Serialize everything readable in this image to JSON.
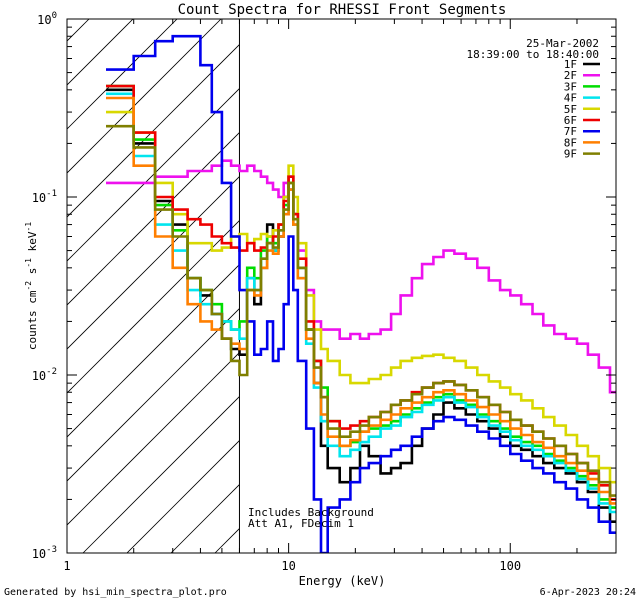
{
  "chart_data": {
    "type": "line",
    "title": "Count Spectra for RHESSI Front Segments",
    "xlabel": "Energy (keV)",
    "ylabel_parts": [
      "counts cm",
      "-2",
      " s",
      "-1",
      " keV",
      "-1"
    ],
    "xscale": "log",
    "yscale": "log",
    "xlim": [
      1,
      300
    ],
    "ylim": [
      0.001,
      1
    ],
    "x_tick_labels": [
      {
        "value": 1,
        "label": "1"
      },
      {
        "value": 10,
        "label": "10"
      },
      {
        "value": 100,
        "label": "100"
      }
    ],
    "y_tick_labels": [
      {
        "value": 1,
        "mantissa": "10",
        "exp": "0"
      },
      {
        "value": 0.1,
        "mantissa": "10",
        "exp": "-1"
      },
      {
        "value": 0.01,
        "mantissa": "10",
        "exp": "-2"
      },
      {
        "value": 0.001,
        "mantissa": "10",
        "exp": "-3"
      }
    ],
    "shaded_region": {
      "x_range": [
        1,
        6
      ],
      "style": "diagonal-hatch"
    },
    "annotation_date": "25-Mar-2002",
    "annotation_time": "18:39:00 to 18:40:00",
    "annotation_note_1": "Includes Background",
    "annotation_note_2": "Att A1, FDecim 1",
    "energy_edges_x": [
      1.5,
      2.0,
      2.5,
      3.0,
      3.5,
      4.0,
      4.5,
      5.0,
      5.5,
      6.0,
      6.5,
      7.0,
      7.5,
      8.0,
      8.5,
      9.0,
      9.5,
      10.0,
      10.5,
      11.0,
      12.0,
      13.0,
      14.0,
      15.0,
      17.0,
      19.0,
      21.0,
      23.0,
      26.0,
      29.0,
      32.0,
      36.0,
      40.0,
      45.0,
      50.0,
      56.0,
      63.0,
      71.0,
      80.0,
      90.0,
      100.0,
      112.0,
      126.0,
      141.0,
      158.0,
      178.0,
      200.0,
      224.0,
      251.0,
      282.0
    ],
    "series": [
      {
        "name": "1F",
        "color": "#000000",
        "values": [
          0.4,
          0.2,
          0.095,
          0.07,
          0.035,
          0.028,
          0.022,
          0.016,
          0.014,
          0.013,
          0.035,
          0.025,
          0.04,
          0.07,
          0.05,
          0.06,
          0.1,
          0.13,
          0.08,
          0.04,
          0.018,
          0.009,
          0.004,
          0.003,
          0.0025,
          0.003,
          0.004,
          0.0035,
          0.0028,
          0.003,
          0.0032,
          0.004,
          0.005,
          0.006,
          0.007,
          0.0065,
          0.006,
          0.0055,
          0.005,
          0.0045,
          0.004,
          0.0038,
          0.0035,
          0.0032,
          0.003,
          0.0028,
          0.0025,
          0.0022,
          0.0018,
          0.0015
        ]
      },
      {
        "name": "2F",
        "color": "#ee11ee",
        "values": [
          0.12,
          0.12,
          0.13,
          0.13,
          0.14,
          0.14,
          0.15,
          0.16,
          0.15,
          0.14,
          0.15,
          0.14,
          0.13,
          0.12,
          0.11,
          0.1,
          0.12,
          0.11,
          0.08,
          0.05,
          0.03,
          0.02,
          0.018,
          0.018,
          0.016,
          0.017,
          0.016,
          0.017,
          0.018,
          0.022,
          0.028,
          0.035,
          0.042,
          0.046,
          0.05,
          0.048,
          0.045,
          0.04,
          0.034,
          0.03,
          0.028,
          0.025,
          0.022,
          0.019,
          0.017,
          0.016,
          0.015,
          0.013,
          0.011,
          0.008
        ]
      },
      {
        "name": "3F",
        "color": "#00dd00",
        "values": [
          0.42,
          0.21,
          0.09,
          0.065,
          0.035,
          0.03,
          0.025,
          0.02,
          0.018,
          0.02,
          0.04,
          0.035,
          0.05,
          0.06,
          0.055,
          0.07,
          0.09,
          0.12,
          0.08,
          0.04,
          0.018,
          0.012,
          0.0085,
          0.0055,
          0.004,
          0.0042,
          0.0048,
          0.005,
          0.0052,
          0.0055,
          0.006,
          0.0065,
          0.007,
          0.0075,
          0.0078,
          0.0072,
          0.0068,
          0.006,
          0.0055,
          0.005,
          0.0045,
          0.0042,
          0.004,
          0.0036,
          0.0033,
          0.003,
          0.0027,
          0.0024,
          0.002,
          0.0018
        ]
      },
      {
        "name": "4F",
        "color": "#00e5ee",
        "values": [
          0.38,
          0.17,
          0.07,
          0.05,
          0.03,
          0.025,
          0.022,
          0.02,
          0.018,
          0.016,
          0.035,
          0.03,
          0.045,
          0.055,
          0.05,
          0.065,
          0.08,
          0.11,
          0.07,
          0.035,
          0.015,
          0.0085,
          0.0055,
          0.004,
          0.0035,
          0.0038,
          0.0042,
          0.0045,
          0.005,
          0.0052,
          0.0058,
          0.0062,
          0.0068,
          0.0072,
          0.0075,
          0.007,
          0.0066,
          0.0058,
          0.0052,
          0.0048,
          0.0043,
          0.004,
          0.0038,
          0.0035,
          0.0032,
          0.0029,
          0.0026,
          0.0023,
          0.0019,
          0.0017
        ]
      },
      {
        "name": "5F",
        "color": "#d8d800",
        "values": [
          0.3,
          0.23,
          0.12,
          0.08,
          0.055,
          0.055,
          0.05,
          0.052,
          0.06,
          0.062,
          0.055,
          0.058,
          0.062,
          0.06,
          0.065,
          0.07,
          0.1,
          0.15,
          0.1,
          0.055,
          0.028,
          0.018,
          0.014,
          0.012,
          0.01,
          0.009,
          0.009,
          0.0095,
          0.01,
          0.011,
          0.012,
          0.0125,
          0.0128,
          0.013,
          0.0125,
          0.012,
          0.011,
          0.01,
          0.0092,
          0.0085,
          0.0078,
          0.0072,
          0.0065,
          0.0058,
          0.0052,
          0.0046,
          0.004,
          0.0035,
          0.003,
          0.0025
        ]
      },
      {
        "name": "6F",
        "color": "#ee0000",
        "values": [
          0.42,
          0.23,
          0.1,
          0.085,
          0.075,
          0.07,
          0.06,
          0.055,
          0.052,
          0.05,
          0.055,
          0.05,
          0.052,
          0.055,
          0.06,
          0.07,
          0.095,
          0.13,
          0.08,
          0.045,
          0.02,
          0.012,
          0.0075,
          0.0055,
          0.005,
          0.0052,
          0.0055,
          0.0058,
          0.0062,
          0.0068,
          0.0072,
          0.008,
          0.0085,
          0.009,
          0.0092,
          0.0088,
          0.0082,
          0.0075,
          0.0068,
          0.0062,
          0.0056,
          0.0052,
          0.0048,
          0.0044,
          0.004,
          0.0036,
          0.0032,
          0.0028,
          0.0024,
          0.002
        ]
      },
      {
        "name": "7F",
        "color": "#0000ee",
        "values": [
          0.52,
          0.62,
          0.75,
          0.8,
          0.8,
          0.55,
          0.3,
          0.12,
          0.06,
          0.03,
          0.02,
          0.013,
          0.014,
          0.02,
          0.012,
          0.014,
          0.025,
          0.06,
          0.03,
          0.012,
          0.005,
          0.002,
          0.001,
          0.0018,
          0.002,
          0.0025,
          0.003,
          0.0032,
          0.0035,
          0.0038,
          0.004,
          0.0045,
          0.005,
          0.0055,
          0.0058,
          0.0056,
          0.0052,
          0.0048,
          0.0044,
          0.004,
          0.0036,
          0.0033,
          0.003,
          0.0028,
          0.0025,
          0.0023,
          0.002,
          0.0018,
          0.0015,
          0.0013
        ]
      },
      {
        "name": "8F",
        "color": "#ff7f00",
        "values": [
          0.36,
          0.15,
          0.06,
          0.04,
          0.025,
          0.02,
          0.018,
          0.016,
          0.015,
          0.014,
          0.03,
          0.028,
          0.04,
          0.05,
          0.048,
          0.06,
          0.08,
          0.11,
          0.07,
          0.035,
          0.016,
          0.009,
          0.006,
          0.0045,
          0.004,
          0.0043,
          0.0048,
          0.0052,
          0.0056,
          0.006,
          0.0065,
          0.007,
          0.0075,
          0.008,
          0.0082,
          0.0078,
          0.0072,
          0.0066,
          0.006,
          0.0055,
          0.005,
          0.0046,
          0.0042,
          0.0039,
          0.0035,
          0.0032,
          0.0029,
          0.0026,
          0.0022,
          0.0019
        ]
      },
      {
        "name": "9F",
        "color": "#7f7f00",
        "values": [
          0.25,
          0.19,
          0.085,
          0.06,
          0.035,
          0.03,
          0.022,
          0.016,
          0.012,
          0.01,
          0.03,
          0.03,
          0.045,
          0.055,
          0.052,
          0.065,
          0.085,
          0.12,
          0.075,
          0.04,
          0.018,
          0.011,
          0.0075,
          0.005,
          0.0045,
          0.0048,
          0.0052,
          0.0058,
          0.0062,
          0.0068,
          0.0072,
          0.0078,
          0.0085,
          0.009,
          0.0092,
          0.0088,
          0.0082,
          0.0075,
          0.0068,
          0.0062,
          0.0056,
          0.0052,
          0.0048,
          0.0044,
          0.004,
          0.0036,
          0.0032,
          0.0029,
          0.0025,
          0.0021
        ]
      }
    ]
  },
  "footer": {
    "generator": "Generated by hsi_min_spectra_plot.pro",
    "timestamp": "6-Apr-2023 20:24"
  }
}
